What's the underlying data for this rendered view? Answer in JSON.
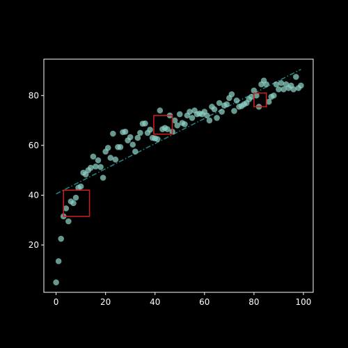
{
  "chart_data": {
    "type": "scatter",
    "title": "",
    "xlabel": "",
    "ylabel": "",
    "xlim": [
      -4.95,
      103.95
    ],
    "ylim": [
      1.0,
      94.6
    ],
    "x_ticks": [
      0,
      20,
      40,
      60,
      80,
      100
    ],
    "y_ticks": [
      20,
      40,
      60,
      80
    ],
    "grid": false,
    "legend": "none",
    "colors": {
      "background": "#000000",
      "axes": "#ffffff",
      "points": "#8fd3c7",
      "trend_line": "#1f8a8a",
      "highlight_boxes": "#c81e1e"
    },
    "series": [
      {
        "x": [
          0,
          1,
          2,
          3,
          4,
          5,
          6,
          7,
          8,
          9,
          10,
          11,
          12,
          13,
          14,
          15,
          16,
          17,
          18,
          19,
          20,
          21,
          22,
          23,
          24,
          25,
          26,
          27,
          28,
          29,
          30,
          31,
          32,
          33,
          34,
          35,
          36,
          37,
          38,
          39,
          40,
          41,
          42,
          43,
          44,
          45,
          46,
          47,
          48,
          49,
          50,
          51,
          52,
          53,
          54,
          55,
          56,
          57,
          58,
          59,
          60,
          61,
          62,
          63,
          64,
          65,
          66,
          67,
          68,
          69,
          70,
          71,
          72,
          73,
          74,
          75,
          76,
          77,
          78,
          79,
          80,
          81,
          82,
          83,
          84,
          85,
          86,
          87,
          88,
          89,
          90,
          91,
          92,
          93,
          94,
          95,
          96,
          97,
          98,
          99
        ],
        "y": [
          5.0,
          13.5,
          22.5,
          31.5,
          34.7,
          29.5,
          37.5,
          36.8,
          39.0,
          43.0,
          43.5,
          49.0,
          48.3,
          50.0,
          51.0,
          55.5,
          51.5,
          54.0,
          51.3,
          47.0,
          57.5,
          59.0,
          55.0,
          64.7,
          54.3,
          59.3,
          59.3,
          65.3,
          65.5,
          62.0,
          63.3,
          60.3,
          57.5,
          63.0,
          65.0,
          68.7,
          68.8,
          65.0,
          66.3,
          63.0,
          62.8,
          62.5,
          74.0,
          66.5,
          67.0,
          66.5,
          72.0,
          65.5,
          70.0,
          68.0,
          72.5,
          69.0,
          68.5,
          72.0,
          73.5,
          71.0,
          74.0,
          72.5,
          72.8,
          72.5,
          73.5,
          72.0,
          70.0,
          75.5,
          74.5,
          71.0,
          77.0,
          73.5,
          76.0,
          76.5,
          79.0,
          80.5,
          73.8,
          78.0,
          75.5,
          75.8,
          76.5,
          77.0,
          78.5,
          79.5,
          82.0,
          80.0,
          75.5,
          84.5,
          86.0,
          84.5,
          77.5,
          79.5,
          80.0,
          84.5,
          82.5,
          85.0,
          82.5,
          84.5,
          83.0,
          84.0,
          82.5,
          87.5,
          83.0,
          84.0
        ]
      }
    ],
    "trend_line": {
      "style": "dash-dot",
      "x": [
        0,
        99
      ],
      "y": [
        40.5,
        90.5
      ]
    },
    "highlight_boxes": [
      {
        "x": [
          3,
          13.5
        ],
        "y": [
          31.5,
          42
        ]
      },
      {
        "x": [
          39.5,
          47
        ],
        "y": [
          64.5,
          72
        ]
      },
      {
        "x": [
          80,
          85
        ],
        "y": [
          75.5,
          81
        ]
      }
    ]
  }
}
